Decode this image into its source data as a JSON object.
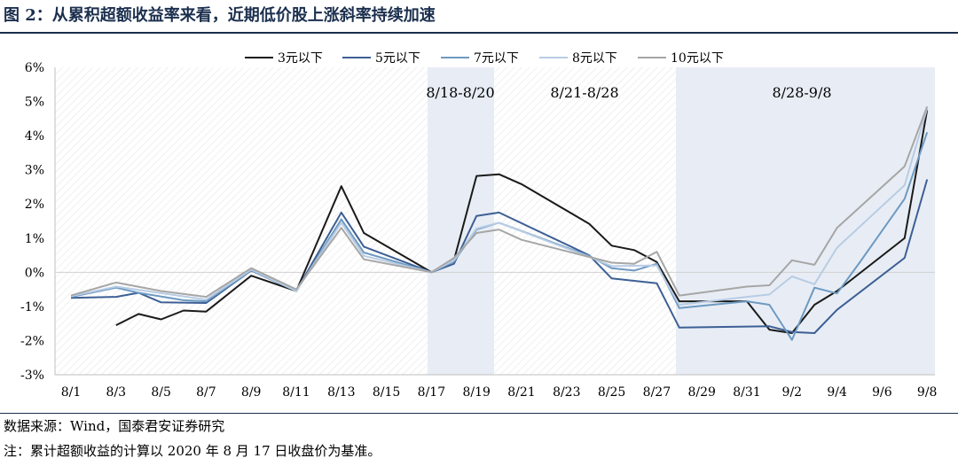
{
  "page": {
    "title": "图 2：从累积超额收益率来看，近期低价股上涨斜率持续加速",
    "source": "数据来源：Wind，国泰君安证券研究",
    "note": "注：累计超额收益的计算以 2020 年 8 月 17 日收盘价为基准。"
  },
  "colors": {
    "accent": "#1b2f4e",
    "shade": "#e8edf5",
    "hatch": "#e6e6e6",
    "axis": "#bfbfbf"
  },
  "chart_data": {
    "type": "line",
    "title": "",
    "xlabel": "",
    "ylabel": "",
    "ylim": [
      -3,
      6
    ],
    "yticks": [
      "-3%",
      "-2%",
      "-1%",
      "0%",
      "1%",
      "2%",
      "3%",
      "4%",
      "5%",
      "6%"
    ],
    "grid": false,
    "legend": "top-center",
    "x": [
      "8/1",
      "8/2",
      "8/3",
      "8/4",
      "8/5",
      "8/6",
      "8/7",
      "8/8",
      "8/9",
      "8/10",
      "8/11",
      "8/12",
      "8/13",
      "8/14",
      "8/15",
      "8/16",
      "8/17",
      "8/18",
      "8/19",
      "8/20",
      "8/21",
      "8/22",
      "8/23",
      "8/24",
      "8/25",
      "8/26",
      "8/27",
      "8/28",
      "8/29",
      "8/30",
      "8/31",
      "9/1",
      "9/2",
      "9/3",
      "9/4",
      "9/5",
      "9/6",
      "9/7",
      "9/8"
    ],
    "xtick_labels": [
      "8/1",
      "8/3",
      "8/5",
      "8/7",
      "8/9",
      "8/11",
      "8/13",
      "8/15",
      "8/17",
      "8/19",
      "8/21",
      "8/23",
      "8/25",
      "8/27",
      "8/29",
      "8/31",
      "9/2",
      "9/4",
      "9/6",
      "9/8"
    ],
    "regions": [
      {
        "label": "8/18-8/20",
        "shaded": true
      },
      {
        "label": "8/21-8/28",
        "shaded": false
      },
      {
        "label": "8/28-9/8",
        "shaded": true
      }
    ],
    "series": [
      {
        "name": "3元以下",
        "color": "#1a1a1a",
        "points": [
          [
            "8/3",
            -1.55
          ],
          [
            "8/4",
            -1.22
          ],
          [
            "8/5",
            -1.38
          ],
          [
            "8/6",
            -1.12
          ],
          [
            "8/7",
            -1.15
          ],
          [
            "8/9",
            -0.1
          ],
          [
            "8/11",
            -0.55
          ],
          [
            "8/13",
            2.52
          ],
          [
            "8/14",
            1.15
          ],
          [
            "8/17",
            0.0
          ],
          [
            "8/18",
            0.35
          ],
          [
            "8/19",
            2.82
          ],
          [
            "8/20",
            2.87
          ],
          [
            "8/21",
            2.58
          ],
          [
            "8/24",
            1.42
          ],
          [
            "8/25",
            0.78
          ],
          [
            "8/26",
            0.65
          ],
          [
            "8/27",
            0.3
          ],
          [
            "8/28",
            -0.85
          ],
          [
            "8/31",
            -0.85
          ],
          [
            "9/1",
            -1.68
          ],
          [
            "9/2",
            -1.78
          ],
          [
            "9/3",
            -0.95
          ],
          [
            "9/4",
            -0.55
          ],
          [
            "9/7",
            1.0
          ],
          [
            "9/8",
            4.75
          ]
        ]
      },
      {
        "name": "5元以下",
        "color": "#3d5f95",
        "points": [
          [
            "8/1",
            -0.75
          ],
          [
            "8/3",
            -0.72
          ],
          [
            "8/4",
            -0.6
          ],
          [
            "8/5",
            -0.88
          ],
          [
            "8/7",
            -0.9
          ],
          [
            "8/9",
            0.05
          ],
          [
            "8/11",
            -0.55
          ],
          [
            "8/13",
            1.75
          ],
          [
            "8/14",
            0.75
          ],
          [
            "8/17",
            0.0
          ],
          [
            "8/18",
            0.25
          ],
          [
            "8/19",
            1.65
          ],
          [
            "8/20",
            1.75
          ],
          [
            "8/24",
            0.5
          ],
          [
            "8/25",
            -0.18
          ],
          [
            "8/27",
            -0.32
          ],
          [
            "8/28",
            -1.62
          ],
          [
            "9/1",
            -1.58
          ],
          [
            "9/2",
            -1.75
          ],
          [
            "9/3",
            -1.78
          ],
          [
            "9/4",
            -1.1
          ],
          [
            "9/7",
            0.42
          ],
          [
            "9/8",
            2.72
          ]
        ]
      },
      {
        "name": "7元以下",
        "color": "#6d9ac2",
        "points": [
          [
            "8/1",
            -0.72
          ],
          [
            "8/3",
            -0.45
          ],
          [
            "8/4",
            -0.6
          ],
          [
            "8/6",
            -0.82
          ],
          [
            "8/7",
            -0.85
          ],
          [
            "8/9",
            0.05
          ],
          [
            "8/11",
            -0.55
          ],
          [
            "8/13",
            1.55
          ],
          [
            "8/14",
            0.58
          ],
          [
            "8/17",
            0.0
          ],
          [
            "8/18",
            0.32
          ],
          [
            "8/19",
            1.25
          ],
          [
            "8/20",
            1.45
          ],
          [
            "8/24",
            0.48
          ],
          [
            "8/25",
            0.12
          ],
          [
            "8/26",
            0.05
          ],
          [
            "8/27",
            0.25
          ],
          [
            "8/28",
            -1.05
          ],
          [
            "8/31",
            -0.85
          ],
          [
            "9/1",
            -0.95
          ],
          [
            "9/2",
            -1.98
          ],
          [
            "9/3",
            -0.45
          ],
          [
            "9/4",
            -0.62
          ],
          [
            "9/5",
            0.28
          ],
          [
            "9/7",
            2.15
          ],
          [
            "9/8",
            4.1
          ]
        ]
      },
      {
        "name": "8元以下",
        "color": "#b8cce4",
        "points": [
          [
            "8/1",
            -0.7
          ],
          [
            "8/3",
            -0.42
          ],
          [
            "8/7",
            -0.8
          ],
          [
            "8/9",
            0.08
          ],
          [
            "8/11",
            -0.55
          ],
          [
            "8/13",
            1.45
          ],
          [
            "8/14",
            0.48
          ],
          [
            "8/17",
            0.0
          ],
          [
            "8/18",
            0.35
          ],
          [
            "8/19",
            1.28
          ],
          [
            "8/20",
            1.45
          ],
          [
            "8/24",
            0.45
          ],
          [
            "8/25",
            0.18
          ],
          [
            "8/27",
            0.2
          ],
          [
            "8/28",
            -0.95
          ],
          [
            "8/31",
            -0.72
          ],
          [
            "9/1",
            -0.65
          ],
          [
            "9/2",
            -0.12
          ],
          [
            "9/3",
            -0.35
          ],
          [
            "9/4",
            0.72
          ],
          [
            "9/7",
            2.55
          ],
          [
            "9/8",
            4.8
          ]
        ]
      },
      {
        "name": "10元以下",
        "color": "#a6a6a6",
        "points": [
          [
            "8/1",
            -0.68
          ],
          [
            "8/3",
            -0.3
          ],
          [
            "8/5",
            -0.55
          ],
          [
            "8/7",
            -0.72
          ],
          [
            "8/9",
            0.12
          ],
          [
            "8/11",
            -0.5
          ],
          [
            "8/13",
            1.3
          ],
          [
            "8/14",
            0.38
          ],
          [
            "8/17",
            0.0
          ],
          [
            "8/18",
            0.42
          ],
          [
            "8/19",
            1.15
          ],
          [
            "8/20",
            1.25
          ],
          [
            "8/21",
            0.95
          ],
          [
            "8/24",
            0.45
          ],
          [
            "8/25",
            0.28
          ],
          [
            "8/26",
            0.25
          ],
          [
            "8/27",
            0.6
          ],
          [
            "8/28",
            -0.68
          ],
          [
            "8/31",
            -0.42
          ],
          [
            "9/1",
            -0.38
          ],
          [
            "9/2",
            0.35
          ],
          [
            "9/3",
            0.22
          ],
          [
            "9/4",
            1.3
          ],
          [
            "9/7",
            3.1
          ],
          [
            "9/8",
            4.85
          ]
        ]
      }
    ]
  }
}
